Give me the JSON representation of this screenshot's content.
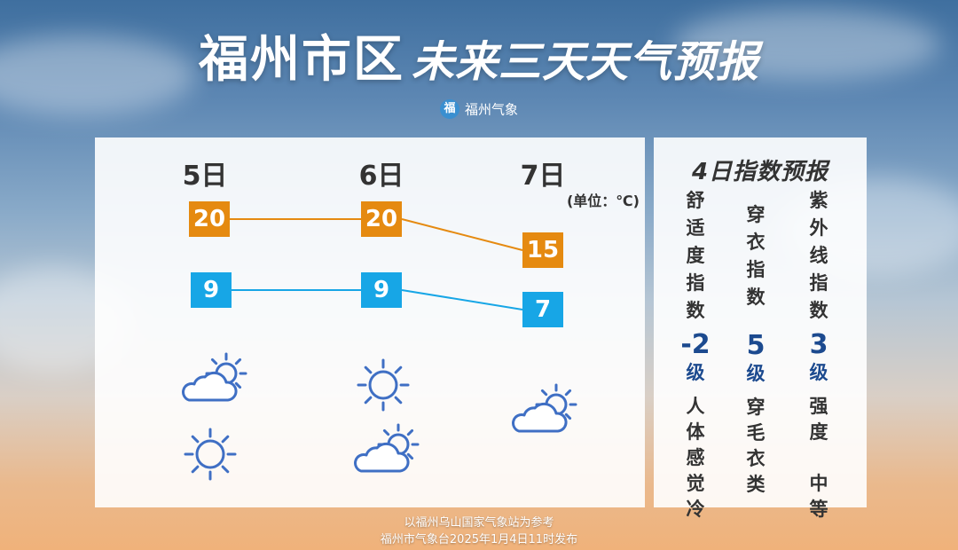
{
  "title": {
    "main": "福州市区",
    "sub": "未来三天天气预报"
  },
  "brand": {
    "logo": "福",
    "name": "福州气象"
  },
  "forecast": {
    "unit": "(单位：℃)",
    "days": [
      {
        "label": "5日",
        "high": "20",
        "low": "9",
        "icons": [
          "partly-cloudy-icon",
          "sunny-icon"
        ]
      },
      {
        "label": "6日",
        "high": "20",
        "low": "9",
        "icons": [
          "sunny-icon",
          "partly-cloudy-icon"
        ]
      },
      {
        "label": "7日",
        "high": "15",
        "low": "7",
        "icons": [
          "partly-cloudy-icon"
        ]
      }
    ],
    "colors": {
      "high": "#e58a10",
      "low": "#17a6e6",
      "icon": "#3f6fc4"
    }
  },
  "indices": {
    "title": "4日指数预报",
    "items": [
      {
        "name": [
          "舒",
          "适",
          "度",
          "指",
          "数"
        ],
        "value": "-2",
        "unit": "级",
        "desc": [
          "人",
          "体",
          "感",
          "觉",
          "冷"
        ]
      },
      {
        "name": [
          "穿",
          "衣",
          "指",
          "数"
        ],
        "value": "5",
        "unit": "级",
        "desc": [
          "穿",
          "毛",
          "衣",
          "类"
        ]
      },
      {
        "name": [
          "紫",
          "外",
          "线",
          "指",
          "数"
        ],
        "value": "3",
        "unit": "级",
        "desc": [
          "强",
          "度",
          "",
          "中",
          "等"
        ]
      }
    ]
  },
  "footer": {
    "line1": "以福州乌山国家气象站为参考",
    "line2": "福州市气象台2025年1月4日11时发布"
  }
}
